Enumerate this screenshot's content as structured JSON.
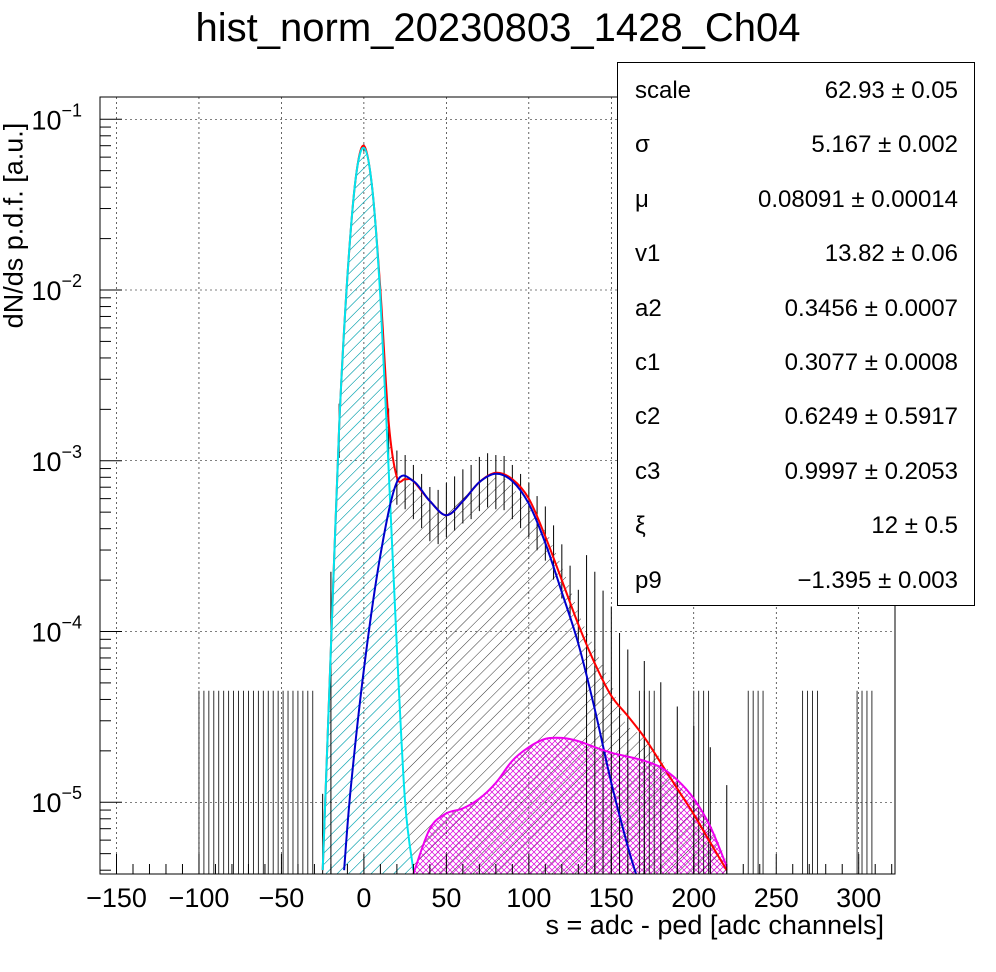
{
  "title": "hist_norm_20230803_1428_Ch04",
  "stats_box": {
    "rows": [
      {
        "name": "scale",
        "value": "62.93 ± 0.05"
      },
      {
        "name": "σ",
        "value": "5.167 ± 0.002"
      },
      {
        "name": "μ",
        "value": "0.08091 ± 0.00014"
      },
      {
        "name": "v1",
        "value": "13.82 ± 0.06"
      },
      {
        "name": "a2",
        "value": "0.3456 ± 0.0007"
      },
      {
        "name": "c1",
        "value": "0.3077 ± 0.0008"
      },
      {
        "name": "c2",
        "value": "0.6249 ± 0.5917"
      },
      {
        "name": "c3",
        "value": "0.9997 ± 0.2053"
      },
      {
        "name": "ξ",
        "value": "12 ± 0.5"
      },
      {
        "name": "p9",
        "value": "−1.395 ± 0.003"
      }
    ]
  },
  "chart_data": {
    "type": "line",
    "title": "hist_norm_20230803_1428_Ch04",
    "xlabel": "s = adc - ped [adc channels]",
    "ylabel": "dN/ds p.d.f. [a.u.]",
    "xlim": [
      -160,
      322
    ],
    "ylim": [
      3.8e-06,
      0.135
    ],
    "yscale": "log",
    "grid": true,
    "x_ticks": [
      -150,
      -100,
      -50,
      0,
      50,
      100,
      150,
      200,
      250,
      300
    ],
    "x_tick_labels": [
      "−150",
      "−100",
      "−50",
      "0",
      "50",
      "100",
      "150",
      "200",
      "250",
      "300"
    ],
    "y_ticks": [
      0.1,
      0.01,
      0.001,
      0.0001,
      1e-05
    ],
    "y_tick_labels": [
      {
        "base": "10",
        "exp": "−1"
      },
      {
        "base": "10",
        "exp": "−2"
      },
      {
        "base": "10",
        "exp": "−3"
      },
      {
        "base": "10",
        "exp": "−4"
      },
      {
        "base": "10",
        "exp": "−5"
      }
    ],
    "series": [
      {
        "name": "",
        "color": "#ff0000",
        "x": [
          -25,
          -20,
          -15,
          -10,
          -5,
          0,
          5,
          10,
          15,
          20,
          25,
          30,
          40,
          50,
          60,
          70,
          80,
          90,
          100,
          110,
          120,
          130,
          140,
          150,
          160,
          170,
          180,
          190,
          200,
          210,
          220
        ],
        "values": [
          4e-06,
          8e-05,
          0.0016,
          0.012,
          0.045,
          0.07,
          0.04,
          0.01,
          0.0017,
          0.0008,
          0.00078,
          0.00076,
          0.00058,
          0.00048,
          0.00058,
          0.00075,
          0.00085,
          0.00078,
          0.0006,
          0.00036,
          0.0002,
          0.00011,
          6.5e-05,
          4.2e-05,
          3.2e-05,
          2.4e-05,
          1.7e-05,
          1.2e-05,
          8.5e-06,
          5.8e-06,
          4e-06
        ]
      },
      {
        "name": "",
        "color": "#00e5ee",
        "x": [
          -25,
          -20,
          -15,
          -10,
          -5,
          0,
          5,
          10,
          15,
          20,
          25,
          30
        ],
        "values": [
          4e-06,
          8e-05,
          0.0016,
          0.012,
          0.045,
          0.068,
          0.04,
          0.009,
          0.0009,
          8e-05,
          1e-05,
          4e-06
        ]
      },
      {
        "name": "",
        "color": "#0000cc",
        "x": [
          -12,
          -8,
          0,
          10,
          20,
          30,
          40,
          50,
          60,
          70,
          80,
          90,
          100,
          110,
          120,
          130,
          140,
          150,
          160,
          165
        ],
        "values": [
          4e-06,
          1.2e-05,
          6e-05,
          0.00028,
          0.00075,
          0.00076,
          0.00058,
          0.00048,
          0.00058,
          0.00075,
          0.00084,
          0.00076,
          0.00056,
          0.00033,
          0.00017,
          8.5e-05,
          3.5e-05,
          1.3e-05,
          5.5e-06,
          3.8e-06
        ]
      },
      {
        "name": "",
        "color": "#ee00ee",
        "x": [
          30,
          40,
          50,
          60,
          70,
          80,
          90,
          100,
          110,
          120,
          130,
          140,
          150,
          160,
          170,
          180,
          190,
          200,
          210,
          220
        ],
        "values": [
          3.8e-06,
          7e-06,
          8.6e-06,
          9.2e-06,
          1.05e-05,
          1.3e-05,
          1.75e-05,
          2.1e-05,
          2.35e-05,
          2.38e-05,
          2.28e-05,
          2.1e-05,
          1.95e-05,
          1.85e-05,
          1.75e-05,
          1.6e-05,
          1.35e-05,
          1.05e-05,
          7.2e-06,
          4.2e-06
        ]
      }
    ],
    "histogram": {
      "x": [
        -25,
        -20,
        -15,
        -10,
        -5,
        0,
        5,
        10,
        15,
        20,
        25,
        30,
        35,
        40,
        45,
        50,
        55,
        60,
        65,
        70,
        75,
        80,
        85,
        90,
        95,
        100,
        105,
        110,
        115,
        120,
        125,
        130,
        135,
        140,
        145,
        150,
        155,
        160,
        170,
        180,
        190,
        200,
        210,
        220
      ],
      "values": [
        4e-06,
        8e-05,
        0.0016,
        0.012,
        0.045,
        0.068,
        0.04,
        0.0095,
        0.0015,
        0.00085,
        0.0008,
        0.0007,
        0.00062,
        0.00052,
        0.0005,
        0.00055,
        0.0006,
        0.00066,
        0.0007,
        0.00078,
        0.00082,
        0.0008,
        0.00079,
        0.0007,
        0.00062,
        0.00055,
        0.00046,
        0.0004,
        0.00031,
        0.00024,
        0.00018,
        0.00013,
        0.0001,
        8e-05,
        6.2e-05,
        5e-05,
        3.5e-05,
        2.8e-05,
        2.4e-05,
        1.8e-05,
        1.3e-05,
        1e-05,
        7.5e-06,
        4.5e-06
      ]
    }
  }
}
